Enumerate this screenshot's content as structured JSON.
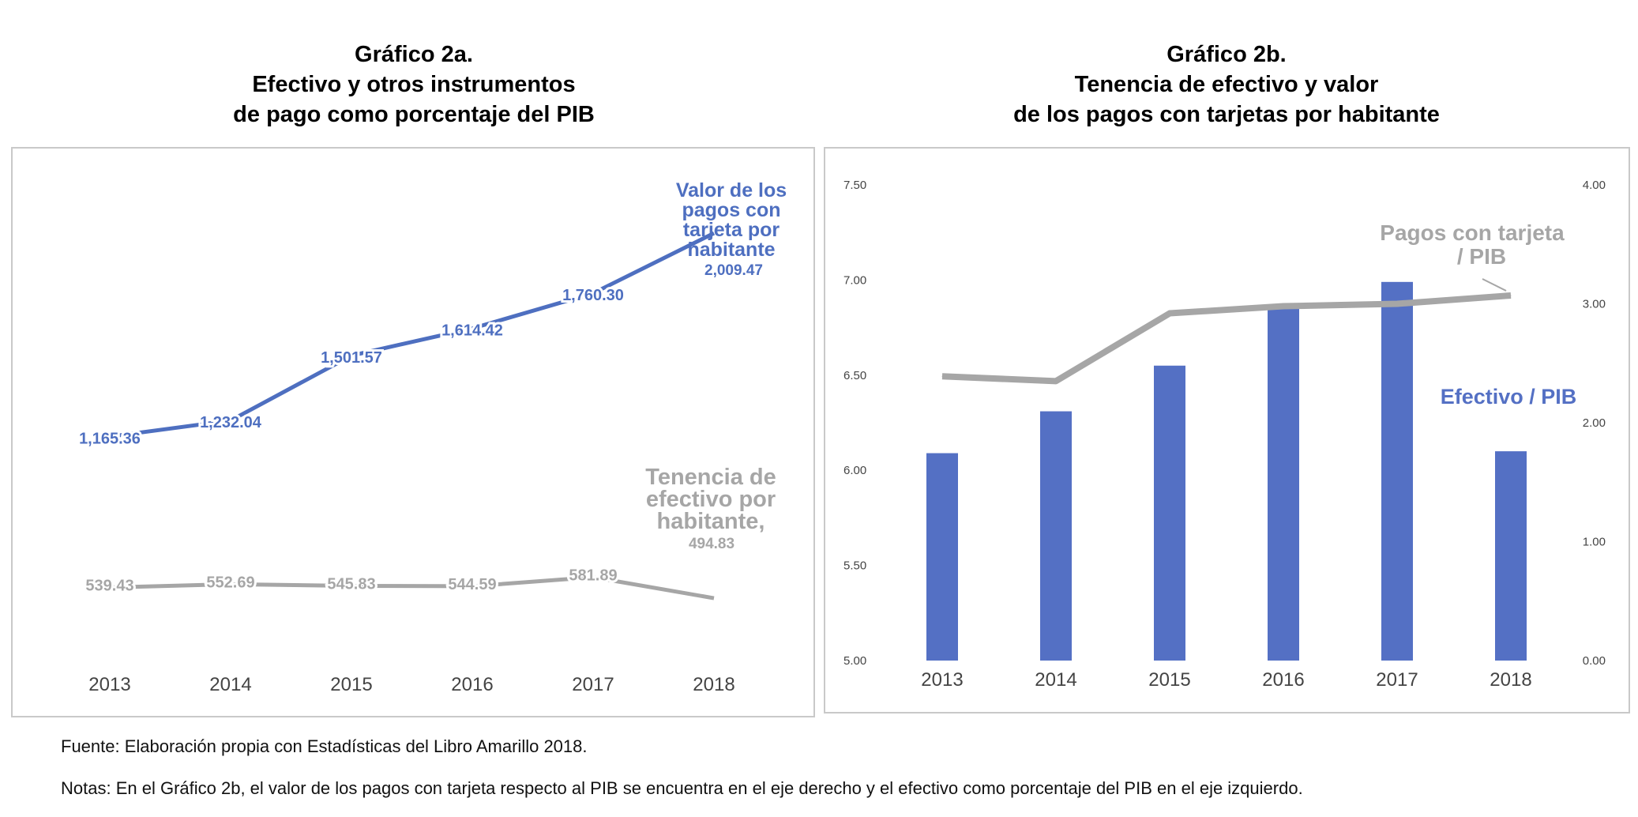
{
  "chart_data": [
    {
      "type": "line",
      "title": [
        "Gráfico 2a.",
        "Efectivo y otros instrumentos",
        "de pago como porcentaje del PIB"
      ],
      "categories": [
        "2013",
        "2014",
        "2015",
        "2016",
        "2017",
        "2018"
      ],
      "series": [
        {
          "name_lines": [
            "Valor de los",
            "pagos con",
            "tarjeta por",
            "habitante"
          ],
          "label_value": "2,009.47",
          "values": [
            1165.36,
            1232.04,
            1501.57,
            1614.42,
            1760.3,
            2009.47
          ],
          "labels": [
            "1,165.36",
            "1,232.04",
            "1,501.57",
            "1,614.42",
            "1,760.30",
            "2,009.47"
          ],
          "color": "#4e6fc0"
        },
        {
          "name_lines": [
            "Tenencia de",
            "efectivo por",
            "habitante,"
          ],
          "label_value": "494.83",
          "values": [
            539.43,
            552.69,
            545.83,
            544.59,
            581.89,
            494.83
          ],
          "labels": [
            "539.43",
            "552.69",
            "545.83",
            "544.59",
            "581.89",
            "494.83"
          ],
          "color": "#a6a6a6"
        }
      ],
      "grid": false
    },
    {
      "type": "bar+line",
      "title": [
        "Gráfico 2b.",
        "Tenencia de efectivo y valor",
        "de los pagos con tarjetas por habitante"
      ],
      "categories": [
        "2013",
        "2014",
        "2015",
        "2016",
        "2017",
        "2018"
      ],
      "left_axis": {
        "range": [
          5.0,
          7.5
        ],
        "ticks": [
          "5.00",
          "5.50",
          "6.00",
          "6.50",
          "7.00",
          "7.50"
        ]
      },
      "right_axis": {
        "range": [
          0.0,
          4.0
        ],
        "ticks": [
          "0.00",
          "1.00",
          "2.00",
          "3.00",
          "4.00"
        ]
      },
      "series": [
        {
          "name": "Efectivo / PIB",
          "type": "bar",
          "axis": "left",
          "values": [
            6.09,
            6.31,
            6.55,
            6.86,
            6.99,
            6.1
          ],
          "color": "#5470c4"
        },
        {
          "name_lines": [
            "Pagos con tarjeta",
            "/ PIB"
          ],
          "type": "line",
          "axis": "right",
          "values": [
            2.39,
            2.35,
            2.92,
            2.98,
            3.0,
            3.07
          ],
          "color": "#a6a6a6"
        }
      ],
      "grid": false
    }
  ],
  "footnotes": {
    "source": "Fuente: Elaboración propia con Estadísticas del Libro Amarillo 2018.",
    "notes": "Notas: En el Gráfico 2b, el valor de los pagos con tarjeta respecto al PIB se encuentra en el eje derecho y el efectivo como porcentaje del PIB en el eje izquierdo."
  }
}
